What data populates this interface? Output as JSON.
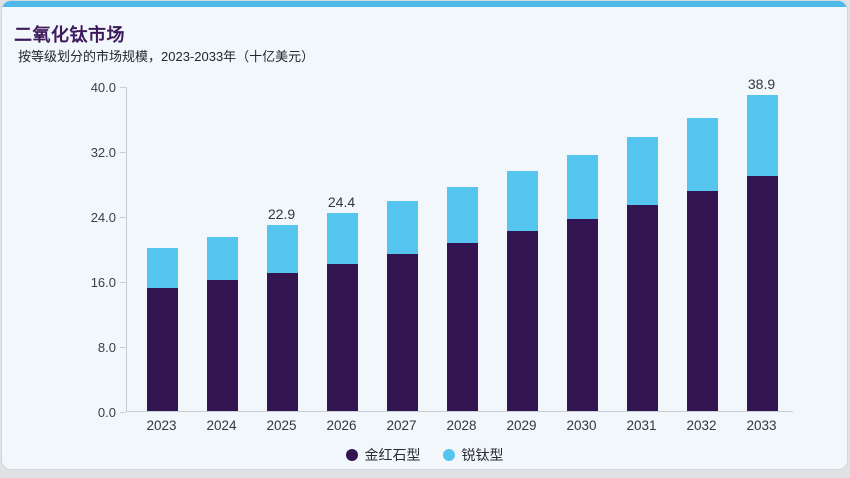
{
  "header": {
    "title": "二氧化钛市场",
    "subtitle": "按等级划分的市场规模，2023-2033年（十亿美元）"
  },
  "chart_data": {
    "type": "bar",
    "stacked": true,
    "title": "二氧化钛市场",
    "subtitle": "按等级划分的市场规模，2023-2033年（十亿美元）",
    "unit": "十亿美元",
    "categories": [
      "2023",
      "2024",
      "2025",
      "2026",
      "2027",
      "2028",
      "2029",
      "2030",
      "2031",
      "2032",
      "2033"
    ],
    "series": [
      {
        "name": "金红石型",
        "color": "#331552",
        "values": [
          15.2,
          16.1,
          17.0,
          18.1,
          19.3,
          20.7,
          22.1,
          23.6,
          25.3,
          27.1,
          28.9
        ]
      },
      {
        "name": "锐钛型",
        "color": "#55c5f0",
        "values": [
          4.9,
          5.3,
          5.9,
          6.3,
          6.6,
          6.9,
          7.4,
          7.9,
          8.4,
          9.0,
          10.0
        ]
      }
    ],
    "annotations": [
      {
        "category": "2025",
        "label": "22.9"
      },
      {
        "category": "2026",
        "label": "24.4"
      },
      {
        "category": "2033",
        "label": "38.9"
      }
    ],
    "ylim": [
      0,
      40
    ],
    "yticks": [
      "0.0",
      "8.0",
      "16.0",
      "24.0",
      "32.0",
      "40.0"
    ],
    "grid": false,
    "legend_position": "bottom"
  },
  "colors": {
    "accent_bar": "#4eb9e9",
    "card_background": "#f2f7fb",
    "page_background": "#e0e1e4",
    "axis_line": "#c8cdd4",
    "title_text": "#3e1a5c",
    "body_text": "#2a2e33"
  }
}
